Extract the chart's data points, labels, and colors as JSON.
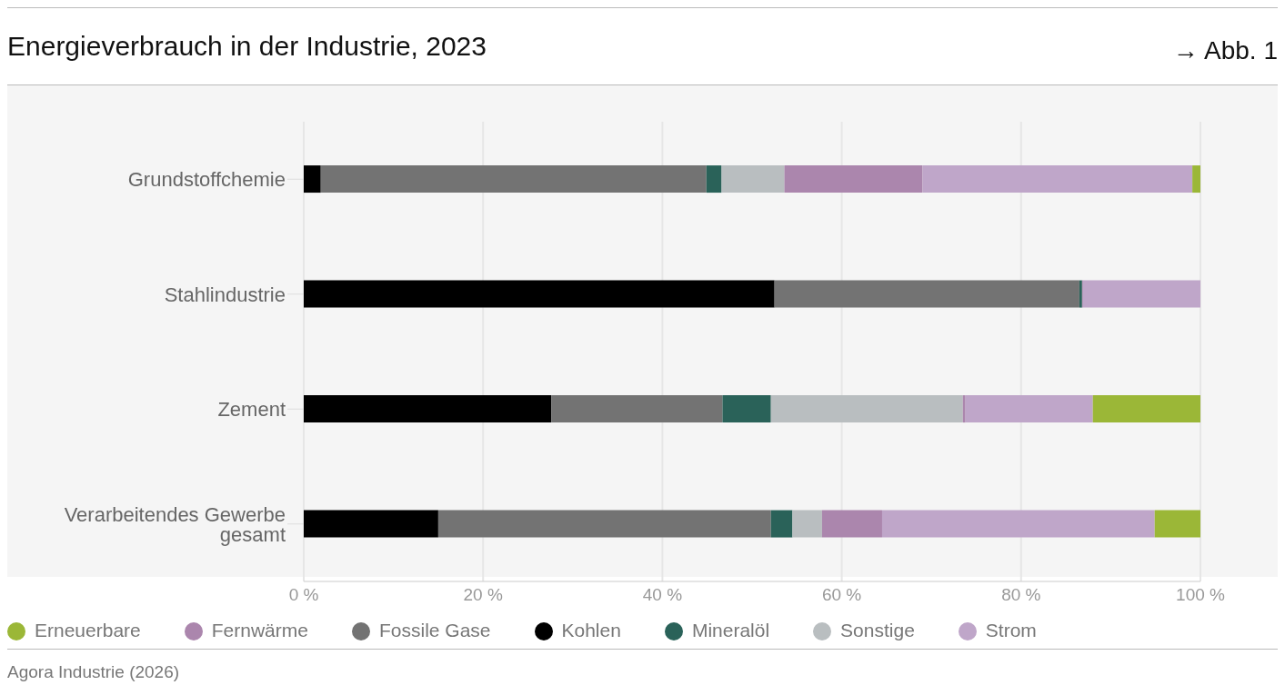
{
  "chart_data": {
    "type": "bar",
    "title": "Energieverbrauch in der Industrie, 2023",
    "orientation": "horizontal",
    "stacked": true,
    "categories": [
      "Grundstoffchemie",
      "Stahlindustrie",
      "Zement",
      "Verarbeitendes Gewerbe gesamt"
    ],
    "series": [
      {
        "name": "Kohlen",
        "color": "#000000",
        "values": [
          1.9,
          52.5,
          27.6,
          15.0
        ]
      },
      {
        "name": "Fossile Gase",
        "color": "#737373",
        "values": [
          43.0,
          34.0,
          19.1,
          37.1
        ]
      },
      {
        "name": "Mineralöl",
        "color": "#2a6259",
        "values": [
          1.7,
          0.3,
          5.4,
          2.4
        ]
      },
      {
        "name": "Sonstige",
        "color": "#b9bec0",
        "values": [
          7.0,
          0,
          21.4,
          3.3
        ]
      },
      {
        "name": "Fernwärme",
        "color": "#ab86ad",
        "values": [
          15.4,
          0.1,
          0.3,
          6.7
        ]
      },
      {
        "name": "Strom",
        "color": "#bfa6c9",
        "values": [
          30.1,
          13.1,
          14.2,
          30.4
        ]
      },
      {
        "name": "Erneuerbare",
        "color": "#9bb737",
        "values": [
          0.9,
          0,
          12.0,
          5.1
        ]
      }
    ],
    "xlim": [
      0,
      100
    ],
    "xticks": [
      {
        "value": 0,
        "label": "0 %"
      },
      {
        "value": 20,
        "label": "20 %"
      },
      {
        "value": 40,
        "label": "40 %"
      },
      {
        "value": 60,
        "label": "60 %"
      },
      {
        "value": 80,
        "label": "80 %"
      },
      {
        "value": 100,
        "label": "100 %"
      }
    ],
    "grid": "x",
    "legend": "bottom",
    "annotations": [
      "→ Abb. 1",
      "Agora Industrie (2026)"
    ]
  }
}
